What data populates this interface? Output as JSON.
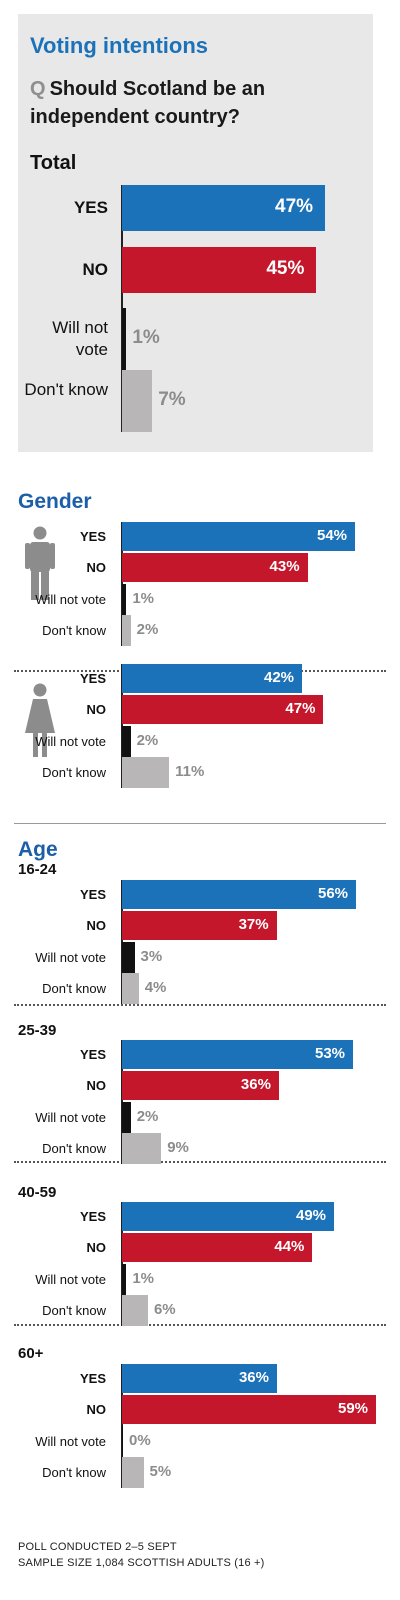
{
  "header": {
    "title": "Voting intentions",
    "q_mark": "Q",
    "question": "Should Scotland be an independent country?",
    "total_label": "Total"
  },
  "sections": {
    "gender": "Gender",
    "age": "Age"
  },
  "footer": {
    "line1": "POLL CONDUCTED 2–5 SEPT",
    "line2": "SAMPLE SIZE 1,084 SCOTTISH ADULTS (16 +)"
  },
  "colors": {
    "yes": "#1c72b9",
    "no": "#c4172c",
    "will_not_vote": "#111111",
    "dont_know": "#b8b6b6",
    "panel": "#e9e8e8",
    "title": "#1c72b9"
  },
  "icons": {
    "male": "male-figure-icon",
    "female": "female-figure-icon"
  },
  "chart_data": {
    "type": "bar",
    "orientation": "horizontal",
    "title": "Voting intentions",
    "subtitle": "Should Scotland be an independent country?",
    "categories": [
      "YES",
      "NO",
      "Will not vote",
      "Don't know"
    ],
    "unit": "%",
    "groups": [
      {
        "label": "Total",
        "values": [
          47,
          45,
          1,
          7
        ]
      },
      {
        "label": "Male",
        "values": [
          54,
          43,
          1,
          2
        ]
      },
      {
        "label": "Female",
        "values": [
          42,
          47,
          2,
          11
        ]
      },
      {
        "label": "16-24",
        "values": [
          56,
          37,
          3,
          4
        ]
      },
      {
        "label": "25-39",
        "values": [
          53,
          36,
          2,
          9
        ]
      },
      {
        "label": "40-59",
        "values": [
          49,
          44,
          1,
          6
        ]
      },
      {
        "label": "60+",
        "values": [
          36,
          59,
          0,
          5
        ]
      }
    ]
  }
}
